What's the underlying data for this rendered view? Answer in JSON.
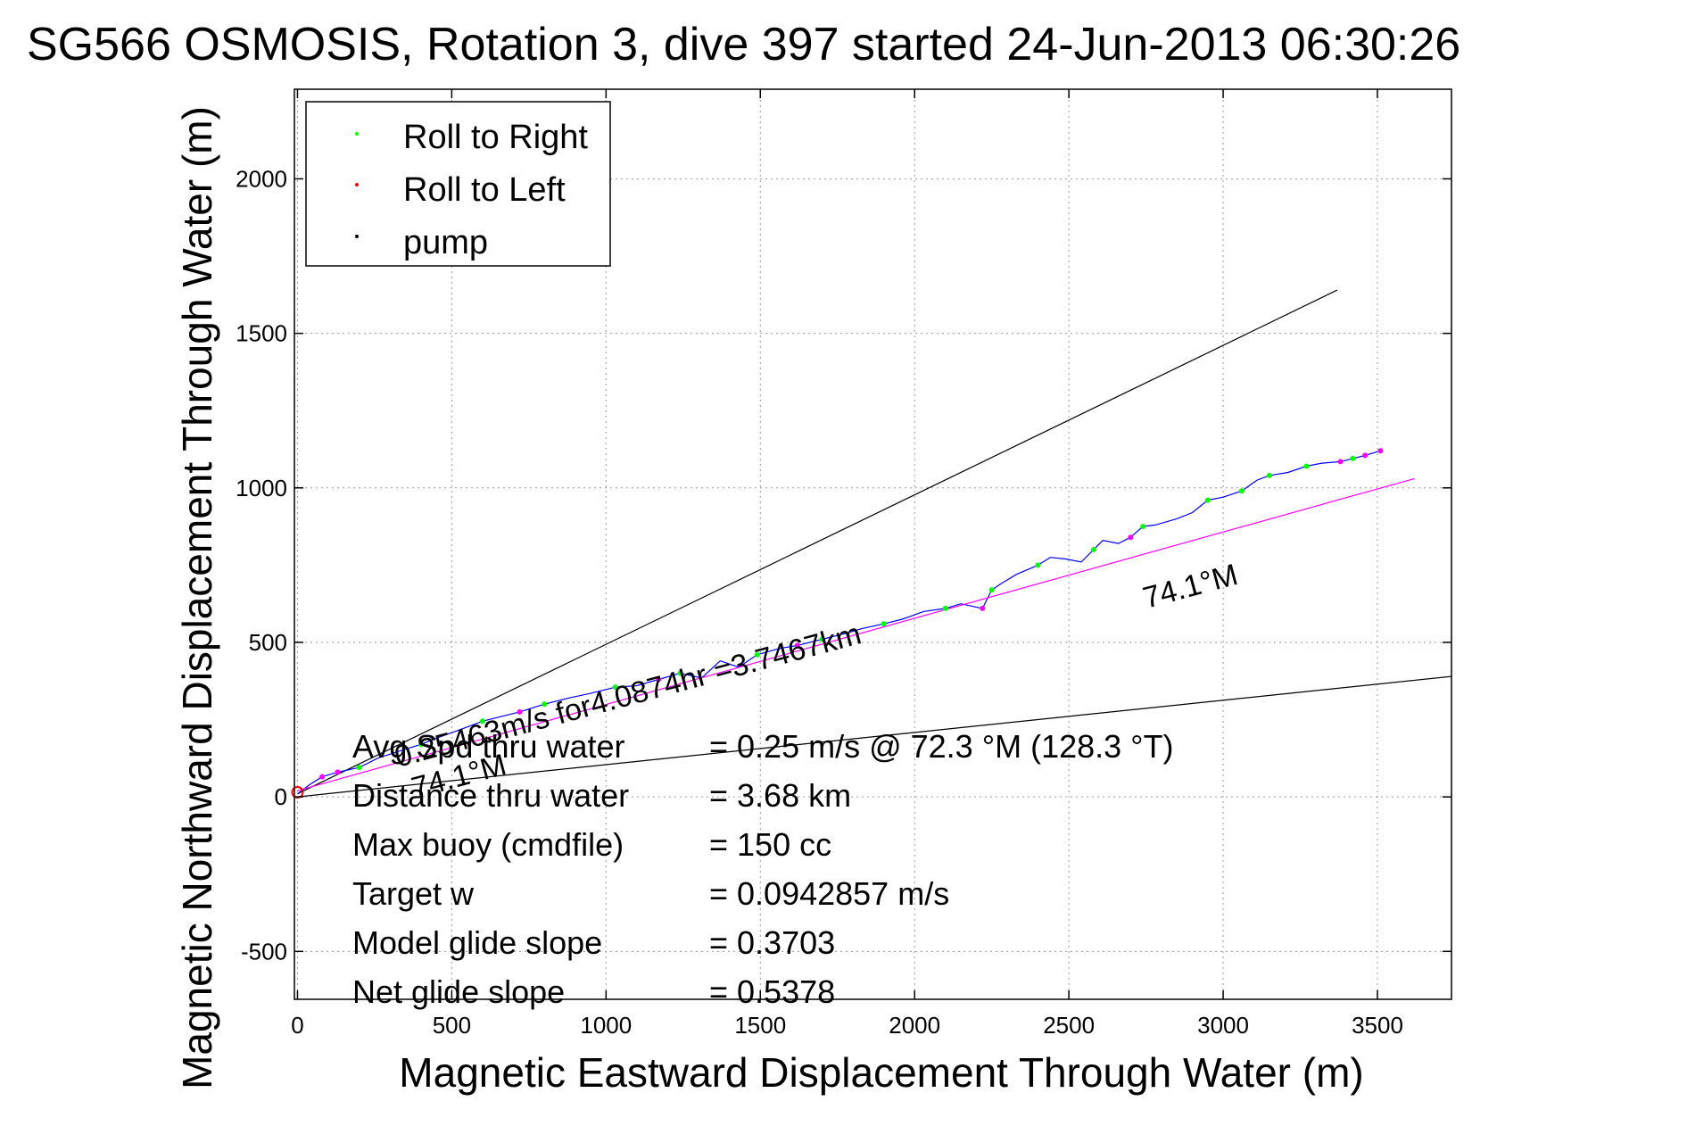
{
  "chart_data": {
    "type": "line",
    "title": "SG566 OSMOSIS, Rotation 3, dive 397 started 24-Jun-2013 06:30:26",
    "xlabel": "Magnetic Eastward Displacement Through Water (m)",
    "ylabel": "Magnetic Northward Displacement Through Water (m)",
    "xlim": [
      -10,
      3740
    ],
    "ylim": [
      -655,
      2290
    ],
    "xticks": [
      0,
      500,
      1000,
      1500,
      2000,
      2500,
      3000,
      3500
    ],
    "yticks": [
      -500,
      0,
      500,
      1000,
      1500,
      2000
    ],
    "grid": true,
    "legend_position": "top-left",
    "legend": [
      {
        "label": "Roll to Right",
        "color": "#00ff00"
      },
      {
        "label": "Roll to Left",
        "color": "#ff0000"
      },
      {
        "label": "pump",
        "color": "#000000"
      }
    ],
    "series": [
      {
        "name": "",
        "color": "#0000ff",
        "x": [
          0,
          40,
          80,
          130,
          200,
          260,
          320,
          400,
          450,
          520,
          600,
          640,
          720,
          800,
          880,
          950,
          1030,
          1100,
          1170,
          1240,
          1310,
          1370,
          1430,
          1490,
          1560,
          1620,
          1700,
          1780,
          1830,
          1900,
          1960,
          2030,
          2100,
          2150,
          2220,
          2250,
          2280,
          2330,
          2400,
          2440,
          2490,
          2540,
          2580,
          2610,
          2660,
          2700,
          2740,
          2780,
          2850,
          2900,
          2950,
          3000,
          3060,
          3110,
          3150,
          3210,
          3270,
          3320,
          3380,
          3420,
          3460,
          3510
        ],
        "y": [
          10,
          40,
          65,
          80,
          95,
          125,
          145,
          170,
          190,
          215,
          245,
          255,
          275,
          300,
          320,
          335,
          355,
          360,
          380,
          400,
          385,
          440,
          420,
          460,
          480,
          490,
          510,
          530,
          545,
          560,
          575,
          600,
          610,
          625,
          610,
          670,
          690,
          720,
          750,
          775,
          770,
          760,
          800,
          830,
          820,
          840,
          875,
          880,
          900,
          920,
          960,
          970,
          990,
          1025,
          1040,
          1050,
          1070,
          1080,
          1085,
          1095,
          1105,
          1120
        ]
      },
      {
        "name": "",
        "color": "#ff00ff",
        "x": [
          0,
          3620
        ],
        "y": [
          20,
          1030
        ]
      }
    ],
    "reference_lines": [
      {
        "color": "#000000",
        "x": [
          0,
          3370
        ],
        "y": [
          10,
          1640
        ]
      },
      {
        "color": "#000000",
        "x": [
          0,
          3740
        ],
        "y": [
          0,
          390
        ]
      }
    ],
    "roll_markers": [
      {
        "color": "#00ff00",
        "x": [
          200,
          400,
          600,
          800,
          1030,
          1240,
          1490,
          1700,
          1900,
          2100,
          2250,
          2400,
          2580,
          2740,
          2950,
          3060,
          3150,
          3270,
          3420
        ],
        "y": [
          95,
          170,
          245,
          300,
          355,
          400,
          460,
          510,
          560,
          610,
          670,
          750,
          800,
          875,
          960,
          990,
          1040,
          1070,
          1095
        ]
      },
      {
        "color": "#ff00ff",
        "x": [
          80,
          130,
          720,
          1170,
          1620,
          2220,
          2700,
          3380,
          3460,
          3510
        ],
        "y": [
          65,
          80,
          275,
          380,
          490,
          610,
          840,
          1085,
          1105,
          1120
        ]
      }
    ],
    "annotations": [
      "74.1°M",
      "74.1°M",
      "0.25463m/s for4.0874hr =3.7467km"
    ],
    "stats": [
      {
        "label": "Avg Spd thru water",
        "value": "=  0.25 m/s @  72.3 °M (128.3 °T)"
      },
      {
        "label": "Distance thru water",
        "value": "=  3.68 km"
      },
      {
        "label": "Max buoy (cmdfile)",
        "value": "= 150 cc"
      },
      {
        "label": "Target w",
        "value": "= 0.0942857 m/s"
      },
      {
        "label": "Model glide slope",
        "value": "= 0.3703"
      },
      {
        "label": "Net glide slope",
        "value": "= 0.5378"
      }
    ]
  }
}
